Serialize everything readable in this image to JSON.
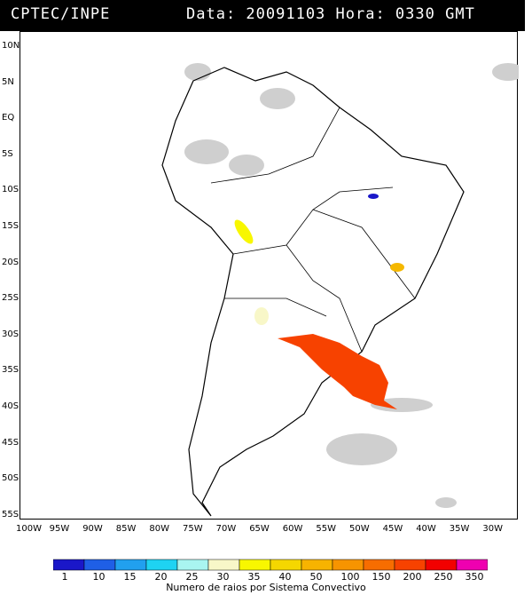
{
  "header": {
    "left": "CPTEC/INPE",
    "right": "Data: 20091103 Hora: 0330 GMT"
  },
  "lat_labels": [
    "10N",
    "5N",
    "EQ",
    "5S",
    "10S",
    "15S",
    "20S",
    "25S",
    "30S",
    "35S",
    "40S",
    "45S",
    "50S",
    "55S"
  ],
  "lon_labels": [
    "100W",
    "95W",
    "90W",
    "85W",
    "80W",
    "75W",
    "70W",
    "65W",
    "60W",
    "55W",
    "50W",
    "45W",
    "40W",
    "35W",
    "30W"
  ],
  "colorbar": {
    "ticks": [
      "1",
      "10",
      "15",
      "20",
      "25",
      "30",
      "35",
      "40",
      "50",
      "100",
      "150",
      "200",
      "250",
      "350"
    ],
    "title": "Numero de raios por Sistema Convectivo",
    "colors": [
      "#1a17c9",
      "#1f5fe6",
      "#21a0ef",
      "#1ed3f2",
      "#a9f5f0",
      "#f8f7c8",
      "#f8f700",
      "#f5d700",
      "#f7b300",
      "#f79400",
      "#f76d00",
      "#f74200",
      "#f20000",
      "#ef00b0"
    ]
  }
}
